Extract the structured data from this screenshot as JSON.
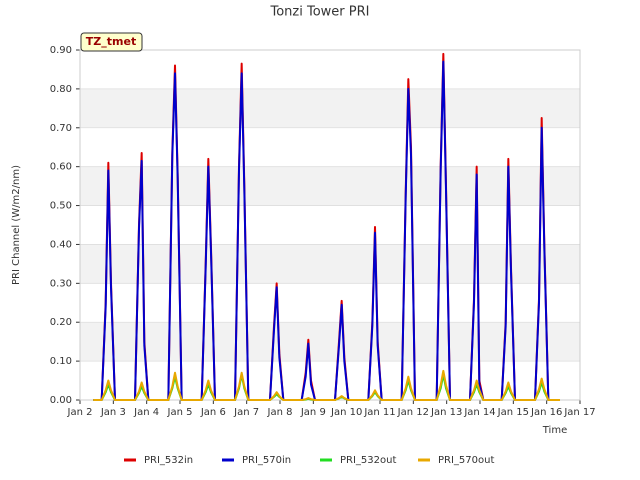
{
  "chart_data": {
    "type": "line",
    "title": "Tonzi Tower PRI",
    "xlabel": "Time",
    "ylabel": "PRI Channel (W/m2/nm)",
    "annotation": "TZ_tmet",
    "x": [
      2.4,
      2.65,
      2.77,
      2.85,
      2.93,
      3.05,
      3.65,
      3.77,
      3.85,
      3.93,
      4.05,
      4.65,
      4.77,
      4.85,
      4.93,
      5.05,
      5.65,
      5.77,
      5.85,
      5.93,
      6.05,
      6.65,
      6.77,
      6.85,
      6.93,
      7.05,
      7.7,
      7.82,
      7.9,
      7.98,
      8.1,
      8.65,
      8.77,
      8.85,
      8.93,
      9.05,
      9.65,
      9.77,
      9.85,
      9.93,
      10.05,
      10.65,
      10.77,
      10.85,
      10.93,
      11.05,
      11.65,
      11.77,
      11.85,
      11.93,
      12.05,
      12.7,
      12.82,
      12.9,
      12.98,
      13.1,
      13.7,
      13.82,
      13.9,
      13.98,
      14.1,
      14.65,
      14.77,
      14.85,
      14.93,
      15.05,
      15.65,
      15.77,
      15.85,
      15.93,
      16.05,
      16.4
    ],
    "series": [
      {
        "name": "PRI_532in",
        "color": "#dd0000",
        "values": [
          0,
          0,
          0.25,
          0.61,
          0.3,
          0,
          0,
          0.45,
          0.635,
          0.15,
          0,
          0,
          0.64,
          0.86,
          0.58,
          0,
          0,
          0.35,
          0.62,
          0.39,
          0,
          0,
          0.6,
          0.865,
          0.55,
          0,
          0,
          0.19,
          0.3,
          0.12,
          0,
          0,
          0.07,
          0.155,
          0.05,
          0,
          0,
          0.15,
          0.255,
          0.11,
          0,
          0,
          0.2,
          0.445,
          0.15,
          0,
          0,
          0.53,
          0.825,
          0.65,
          0,
          0,
          0.6,
          0.89,
          0.55,
          0,
          0,
          0.26,
          0.6,
          0.05,
          0,
          0,
          0.2,
          0.62,
          0.34,
          0,
          0,
          0.26,
          0.725,
          0.4,
          0,
          0
        ]
      },
      {
        "name": "PRI_570in",
        "color": "#0000cc",
        "values": [
          0,
          0,
          0.24,
          0.59,
          0.29,
          0,
          0,
          0.44,
          0.615,
          0.14,
          0,
          0,
          0.63,
          0.84,
          0.57,
          0,
          0,
          0.34,
          0.6,
          0.38,
          0,
          0,
          0.59,
          0.84,
          0.54,
          0,
          0,
          0.18,
          0.29,
          0.11,
          0,
          0,
          0.06,
          0.145,
          0.04,
          0,
          0,
          0.14,
          0.245,
          0.1,
          0,
          0,
          0.19,
          0.43,
          0.14,
          0,
          0,
          0.52,
          0.8,
          0.63,
          0,
          0,
          0.59,
          0.87,
          0.54,
          0,
          0,
          0.25,
          0.58,
          0.04,
          0,
          0,
          0.19,
          0.6,
          0.33,
          0,
          0,
          0.25,
          0.7,
          0.39,
          0,
          0
        ]
      },
      {
        "name": "PRI_532out",
        "color": "#22dd22",
        "values": [
          0,
          0,
          0.02,
          0.04,
          0.02,
          0,
          0,
          0.018,
          0.035,
          0.018,
          0,
          0,
          0.03,
          0.06,
          0.03,
          0,
          0,
          0.02,
          0.04,
          0.02,
          0,
          0,
          0.03,
          0.065,
          0.03,
          0,
          0,
          0.008,
          0.015,
          0.008,
          0,
          0,
          0.001,
          0.003,
          0.001,
          0,
          0,
          0.004,
          0.008,
          0.004,
          0,
          0,
          0.01,
          0.02,
          0.01,
          0,
          0,
          0.025,
          0.05,
          0.025,
          0,
          0,
          0.03,
          0.065,
          0.03,
          0,
          0,
          0.02,
          0.04,
          0.02,
          0,
          0,
          0.018,
          0.035,
          0.018,
          0,
          0,
          0.022,
          0.045,
          0.022,
          0,
          0
        ]
      },
      {
        "name": "PRI_570out",
        "color": "#e8a800",
        "values": [
          0,
          0,
          0.025,
          0.05,
          0.025,
          0,
          0,
          0.022,
          0.045,
          0.022,
          0,
          0,
          0.035,
          0.07,
          0.035,
          0,
          0,
          0.025,
          0.05,
          0.025,
          0,
          0,
          0.035,
          0.07,
          0.035,
          0,
          0,
          0.01,
          0.02,
          0.01,
          0,
          0,
          0.002,
          0.005,
          0.002,
          0,
          0,
          0.005,
          0.01,
          0.005,
          0,
          0,
          0.012,
          0.025,
          0.012,
          0,
          0,
          0.03,
          0.06,
          0.03,
          0,
          0,
          0.038,
          0.075,
          0.038,
          0,
          0,
          0.025,
          0.05,
          0.025,
          0,
          0,
          0.022,
          0.045,
          0.022,
          0,
          0,
          0.028,
          0.055,
          0.028,
          0,
          0
        ]
      }
    ],
    "xlim": [
      2,
      17
    ],
    "xticks": [
      {
        "value": 2,
        "label": "Jan 2"
      },
      {
        "value": 3,
        "label": "Jan 3"
      },
      {
        "value": 4,
        "label": "Jan 4"
      },
      {
        "value": 5,
        "label": "Jan 5"
      },
      {
        "value": 6,
        "label": "Jan 6"
      },
      {
        "value": 7,
        "label": "Jan 7"
      },
      {
        "value": 8,
        "label": "Jan 8"
      },
      {
        "value": 9,
        "label": "Jan 9"
      },
      {
        "value": 10,
        "label": "Jan 10"
      },
      {
        "value": 11,
        "label": "Jan 11"
      },
      {
        "value": 12,
        "label": "Jan 12"
      },
      {
        "value": 13,
        "label": "Jan 13"
      },
      {
        "value": 14,
        "label": "Jan 14"
      },
      {
        "value": 15,
        "label": "Jan 15"
      },
      {
        "value": 16,
        "label": "Jan 16"
      },
      {
        "value": 17,
        "label": "Jan 17"
      }
    ],
    "ylim": [
      0,
      0.9
    ],
    "yticks": [
      {
        "value": 0,
        "label": "0.00"
      },
      {
        "value": 0.1,
        "label": "0.10"
      },
      {
        "value": 0.2,
        "label": "0.20"
      },
      {
        "value": 0.3,
        "label": "0.30"
      },
      {
        "value": 0.4,
        "label": "0.40"
      },
      {
        "value": 0.5,
        "label": "0.50"
      },
      {
        "value": 0.6,
        "label": "0.60"
      },
      {
        "value": 0.7,
        "label": "0.70"
      },
      {
        "value": 0.8,
        "label": "0.80"
      },
      {
        "value": 0.9,
        "label": "0.90"
      }
    ],
    "grid": true,
    "legend": "bottom"
  }
}
